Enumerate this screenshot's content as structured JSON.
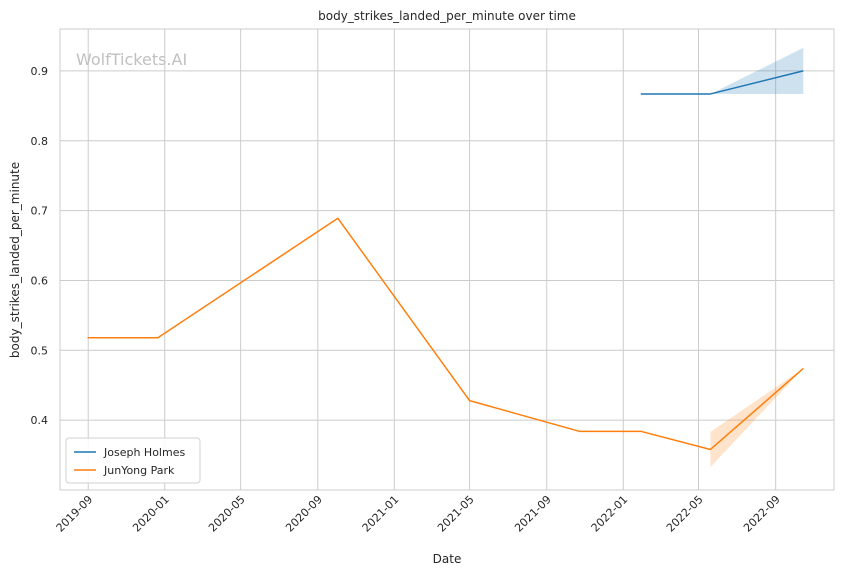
{
  "chart_data": {
    "type": "line",
    "title": "body_strikes_landed_per_minute over time",
    "xlabel": "Date",
    "ylabel": "body_strikes_landed_per_minute",
    "watermark": "WolfTickets.AI",
    "x_ticks": [
      "2019-09",
      "2020-01",
      "2020-05",
      "2020-09",
      "2021-01",
      "2021-05",
      "2021-09",
      "2022-01",
      "2022-05",
      "2022-09"
    ],
    "y_ticks": [
      "0.4",
      "0.5",
      "0.6",
      "0.7",
      "0.8",
      "0.9"
    ],
    "xlim": [
      "2019-07-18",
      "2022-12-03"
    ],
    "ylim": [
      0.3,
      0.96
    ],
    "grid": true,
    "legend_position": "bottom-left",
    "series": [
      {
        "name": "Joseph Holmes",
        "color": "#1f77b4",
        "x": [
          "2022-01-29",
          "2022-05-20",
          "2022-10-15"
        ],
        "y": [
          0.867,
          0.867,
          0.9
        ],
        "band": {
          "x": [
            "2022-05-20",
            "2022-10-15"
          ],
          "lower": [
            0.867,
            0.867
          ],
          "upper": [
            0.867,
            0.933
          ]
        }
      },
      {
        "name": "JunYong Park",
        "color": "#ff7f0e",
        "x": [
          "2019-08-31",
          "2019-12-21",
          "2020-10-03",
          "2021-05-01",
          "2021-10-23",
          "2022-01-29",
          "2022-05-20",
          "2022-10-15"
        ],
        "y": [
          0.518,
          0.518,
          0.689,
          0.428,
          0.384,
          0.384,
          0.358,
          0.474
        ],
        "band": {
          "x": [
            "2022-05-20",
            "2022-10-15"
          ],
          "lower": [
            0.333,
            0.474
          ],
          "upper": [
            0.383,
            0.474
          ]
        }
      }
    ]
  }
}
